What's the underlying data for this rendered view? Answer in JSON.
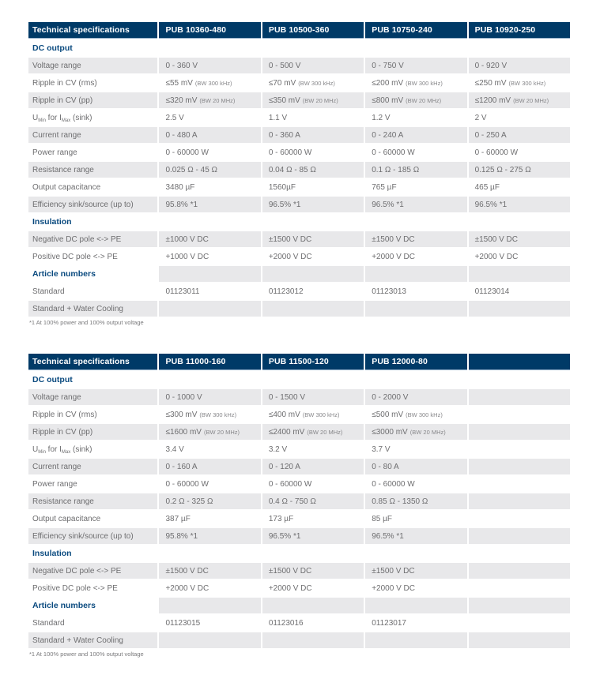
{
  "colors": {
    "header_bg": "#003a67",
    "header_text": "#ffffff",
    "section_text": "#0a4a7f",
    "row_alt_bg": "#e8e8ea",
    "body_text": "#6e6e70",
    "footnote_text": "#7a7a7c"
  },
  "tables": [
    {
      "header": [
        "Technical specifications",
        "PUB 10360-480",
        "PUB 10500-360",
        "PUB 10750-240",
        "PUB 10920-250"
      ],
      "sections": [
        {
          "title": "DC output",
          "rows": [
            {
              "label": "Voltage range",
              "values": [
                "0 - 360 V",
                "0 - 500 V",
                "0 - 750 V",
                "0 - 920 V"
              ]
            },
            {
              "label": "Ripple in CV (rms)",
              "values": [
                {
                  "main": "≤55 mV",
                  "note": "(BW 300 kHz)"
                },
                {
                  "main": "≤70 mV",
                  "note": "(BW 300 kHz)"
                },
                {
                  "main": "≤200 mV",
                  "note": "(BW 300 kHz)"
                },
                {
                  "main": "≤250 mV",
                  "note": "(BW 300 kHz)"
                }
              ]
            },
            {
              "label": "Ripple in CV (pp)",
              "values": [
                {
                  "main": "≤320 mV",
                  "note": "(BW 20 MHz)"
                },
                {
                  "main": "≤350 mV",
                  "note": "(BW 20 MHz)"
                },
                {
                  "main": "≤800 mV",
                  "note": "(BW 20 MHz)"
                },
                {
                  "main": "≤1200 mV",
                  "note": "(BW 20 MHz)"
                }
              ]
            },
            {
              "label_parts": [
                {
                  "t": "U"
                },
                {
                  "t": "Min",
                  "sub": true
                },
                {
                  "t": " for I"
                },
                {
                  "t": "Max",
                  "sub": true
                },
                {
                  "t": " (sink)"
                }
              ],
              "values": [
                "2.5 V",
                "1.1 V",
                "1.2 V",
                "2 V"
              ]
            },
            {
              "label": "Current range",
              "values": [
                "0 - 480 A",
                "0 - 360 A",
                "0 - 240 A",
                "0 - 250 A"
              ]
            },
            {
              "label": "Power range",
              "values": [
                "0 - 60000 W",
                "0 - 60000 W",
                "0 - 60000 W",
                "0 - 60000 W"
              ]
            },
            {
              "label": "Resistance range",
              "values": [
                "0.025 Ω - 45 Ω",
                "0.04 Ω - 85 Ω",
                "0.1 Ω - 185 Ω",
                "0.125 Ω - 275 Ω"
              ]
            },
            {
              "label": "Output capacitance",
              "values": [
                "3480 µF",
                "1560µF",
                "765 µF",
                "465 µF"
              ]
            },
            {
              "label": "Efficiency sink/source (up to)",
              "values": [
                "95.8% *1",
                "96.5% *1",
                "96.5% *1",
                "96.5% *1"
              ]
            }
          ]
        },
        {
          "title": "Insulation",
          "rows": [
            {
              "label": "Negative DC pole <-> PE",
              "values": [
                "±1000 V DC",
                "±1500 V DC",
                "±1500 V DC",
                "±1500 V DC"
              ]
            },
            {
              "label": "Positive DC pole <-> PE",
              "values": [
                "+1000 V DC",
                "+2000 V DC",
                "+2000 V DC",
                "+2000 V DC"
              ]
            }
          ]
        },
        {
          "title": "Article numbers",
          "rows": [
            {
              "label": "Standard",
              "values": [
                "01123011",
                "01123012",
                "01123013",
                "01123014"
              ]
            },
            {
              "label": "Standard + Water Cooling",
              "values": [
                "",
                "",
                "",
                ""
              ]
            }
          ]
        }
      ],
      "footnote": "*1 At 100% power and 100% output voltage"
    },
    {
      "header": [
        "Technical specifications",
        "PUB 11000-160",
        "PUB 11500-120",
        "PUB 12000-80",
        ""
      ],
      "sections": [
        {
          "title": "DC output",
          "rows": [
            {
              "label": "Voltage range",
              "values": [
                "0 - 1000 V",
                "0 - 1500 V",
                "0 - 2000 V",
                ""
              ]
            },
            {
              "label": "Ripple in CV (rms)",
              "values": [
                {
                  "main": "≤300 mV",
                  "note": "(BW 300 kHz)"
                },
                {
                  "main": "≤400 mV",
                  "note": "(BW 300 kHz)"
                },
                {
                  "main": "≤500 mV",
                  "note": "(BW 300 kHz)"
                },
                ""
              ]
            },
            {
              "label": "Ripple in CV (pp)",
              "values": [
                {
                  "main": "≤1600 mV",
                  "note": "(BW 20 MHz)"
                },
                {
                  "main": "≤2400 mV",
                  "note": "(BW 20 MHz)"
                },
                {
                  "main": "≤3000 mV",
                  "note": "(BW 20 MHz)"
                },
                ""
              ]
            },
            {
              "label_parts": [
                {
                  "t": "U"
                },
                {
                  "t": "Min",
                  "sub": true
                },
                {
                  "t": " for I"
                },
                {
                  "t": "Max",
                  "sub": true
                },
                {
                  "t": " (sink)"
                }
              ],
              "values": [
                "3.4 V",
                "3.2 V",
                "3.7 V",
                ""
              ]
            },
            {
              "label": "Current range",
              "values": [
                "0 - 160 A",
                "0 - 120 A",
                "0 - 80 A",
                ""
              ]
            },
            {
              "label": "Power range",
              "values": [
                "0 - 60000 W",
                "0 - 60000 W",
                "0 - 60000 W",
                ""
              ]
            },
            {
              "label": "Resistance range",
              "values": [
                "0.2 Ω - 325 Ω",
                "0.4 Ω - 750 Ω",
                "0.85 Ω - 1350 Ω",
                ""
              ]
            },
            {
              "label": "Output capacitance",
              "values": [
                "387 µF",
                "173 µF",
                "85 µF",
                ""
              ]
            },
            {
              "label": "Efficiency sink/source (up to)",
              "values": [
                "95.8% *1",
                "96.5% *1",
                "96.5% *1",
                ""
              ]
            }
          ]
        },
        {
          "title": "Insulation",
          "rows": [
            {
              "label": "Negative DC pole <-> PE",
              "values": [
                "±1500 V DC",
                "±1500 V DC",
                "±1500 V DC",
                ""
              ]
            },
            {
              "label": "Positive DC pole <-> PE",
              "values": [
                "+2000 V DC",
                "+2000 V DC",
                "+2000 V DC",
                ""
              ]
            }
          ]
        },
        {
          "title": "Article numbers",
          "rows": [
            {
              "label": "Standard",
              "values": [
                "01123015",
                "01123016",
                "01123017",
                ""
              ]
            },
            {
              "label": "Standard + Water Cooling",
              "values": [
                "",
                "",
                "",
                ""
              ]
            }
          ]
        }
      ],
      "footnote": "*1 At 100% power and 100% output voltage"
    }
  ]
}
